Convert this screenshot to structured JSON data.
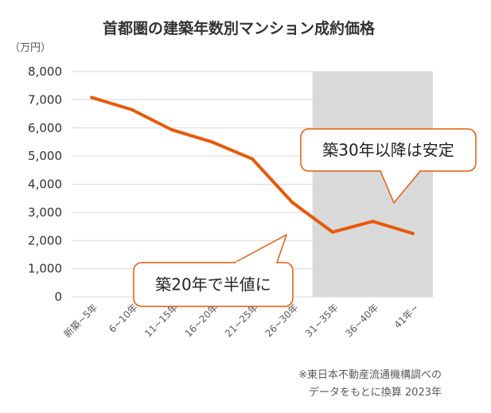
{
  "chart_data": {
    "type": "line",
    "title": "首都圏の建築年数別マンション成約価格",
    "ylabel": "（万円）",
    "xlabel": "",
    "categories": [
      "新築~5年",
      "6~10年",
      "11~15年",
      "16~20年",
      "21~25年",
      "26~30年",
      "31~35年",
      "36~40年",
      "41年~"
    ],
    "series": [
      {
        "values": [
          7080,
          6650,
          5930,
          5500,
          4900,
          3350,
          2300,
          2680,
          2250
        ]
      }
    ],
    "ylim": [
      0,
      8000
    ],
    "yticks": [
      0,
      1000,
      2000,
      3000,
      4000,
      5000,
      6000,
      7000,
      8000
    ],
    "ytick_labels": [
      "0",
      "1,000",
      "2,000",
      "3,000",
      "4,000",
      "5,000",
      "6,000",
      "7,000",
      "8,000"
    ],
    "grid": true,
    "highlight_range": {
      "from": "31~35年",
      "to": "41年~",
      "color": "#d9d9d9"
    },
    "annotations": [
      {
        "text": "築20年で半値に",
        "points_to": "26~30年"
      },
      {
        "text": "築30年以降は安定",
        "points_to": "36~40年"
      }
    ],
    "source_note": [
      "※東日本不動産流通機構調べの",
      "データをもとに換算 2023年"
    ]
  },
  "colors": {
    "line": "#e8590c",
    "callout_border": "#e8590c",
    "grid": "#d9d9d9",
    "shade": "#d9d9d9",
    "text": "#333333",
    "tick_text": "#595959"
  }
}
